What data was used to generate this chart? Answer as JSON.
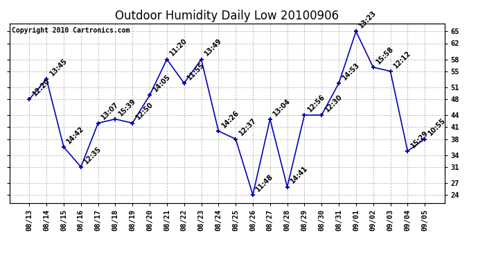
{
  "title": "Outdoor Humidity Daily Low 20100906",
  "copyright": "Copyright 2010 Cartronics.com",
  "dates": [
    "08/13",
    "08/14",
    "08/15",
    "08/16",
    "08/17",
    "08/18",
    "08/19",
    "08/20",
    "08/21",
    "08/22",
    "08/23",
    "08/24",
    "08/25",
    "08/26",
    "08/27",
    "08/28",
    "08/29",
    "08/30",
    "08/31",
    "09/01",
    "09/02",
    "09/03",
    "09/04",
    "09/05"
  ],
  "values": [
    48,
    53,
    36,
    31,
    42,
    43,
    42,
    49,
    58,
    52,
    58,
    40,
    38,
    24,
    43,
    26,
    44,
    44,
    52,
    65,
    56,
    55,
    35,
    38
  ],
  "labels": [
    "12:20",
    "13:45",
    "14:42",
    "12:35",
    "13:07",
    "15:39",
    "12:50",
    "14:05",
    "11:20",
    "11:55",
    "13:49",
    "14:26",
    "12:37",
    "11:48",
    "13:04",
    "14:41",
    "12:56",
    "12:30",
    "14:53",
    "13:23",
    "15:58",
    "12:12",
    "15:29",
    "10:55"
  ],
  "line_color": "#0000bb",
  "marker_color": "#0000bb",
  "background_color": "#ffffff",
  "plot_bg_color": "#ffffff",
  "grid_color": "#bbbbbb",
  "ylim": [
    22,
    67
  ],
  "yticks": [
    24,
    27,
    31,
    34,
    38,
    41,
    44,
    48,
    51,
    55,
    58,
    62,
    65
  ],
  "title_fontsize": 12,
  "label_fontsize": 7,
  "copyright_fontsize": 7,
  "tick_fontsize": 7.5
}
